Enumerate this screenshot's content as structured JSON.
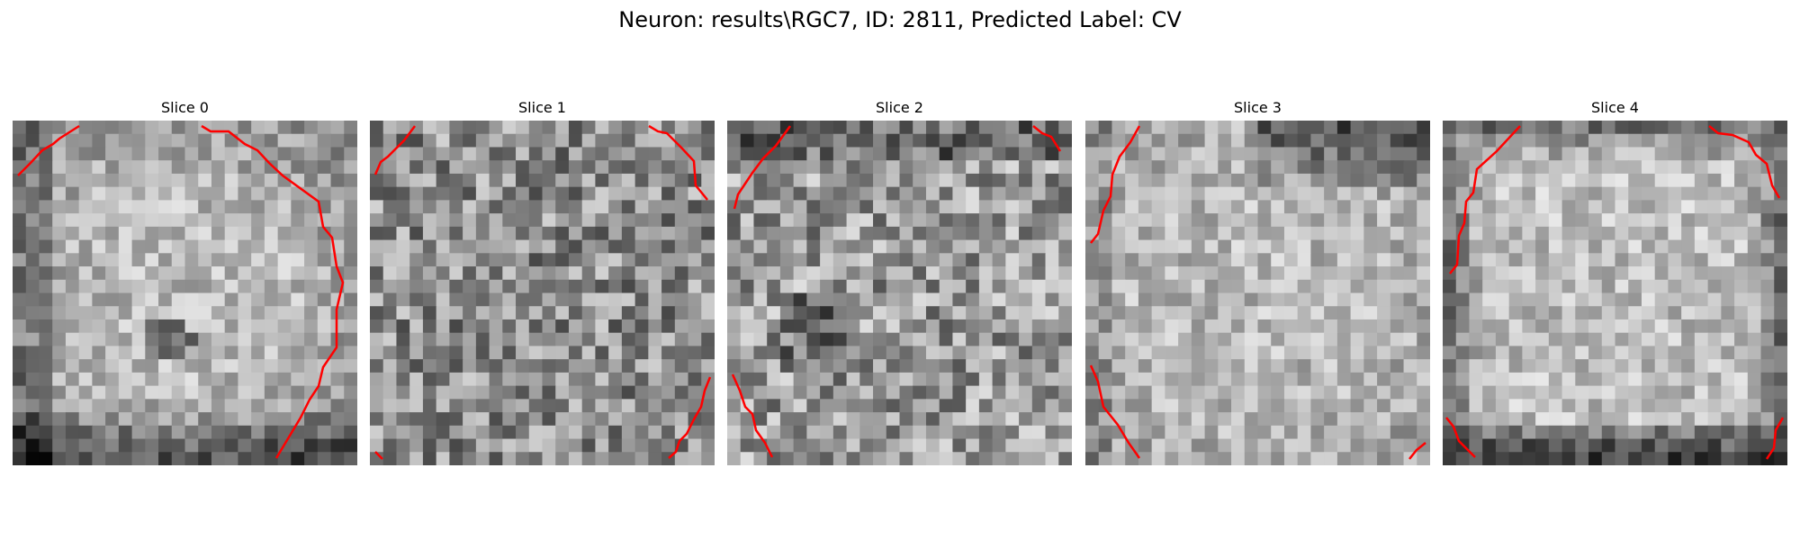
{
  "figure": {
    "title": "Neuron: results\\RGC7, ID: 2811, Predicted Label: CV",
    "contour_color": "#ff0000"
  },
  "panels": [
    {
      "title": "Slice 0",
      "brightness": "bright center, dark bottom rim"
    },
    {
      "title": "Slice 1",
      "brightness": "mid-gray noisy"
    },
    {
      "title": "Slice 2",
      "brightness": "mid-gray noisy"
    },
    {
      "title": "Slice 3",
      "brightness": "bright center, dark top-right"
    },
    {
      "title": "Slice 4",
      "brightness": "bright center, dark borders"
    }
  ]
}
